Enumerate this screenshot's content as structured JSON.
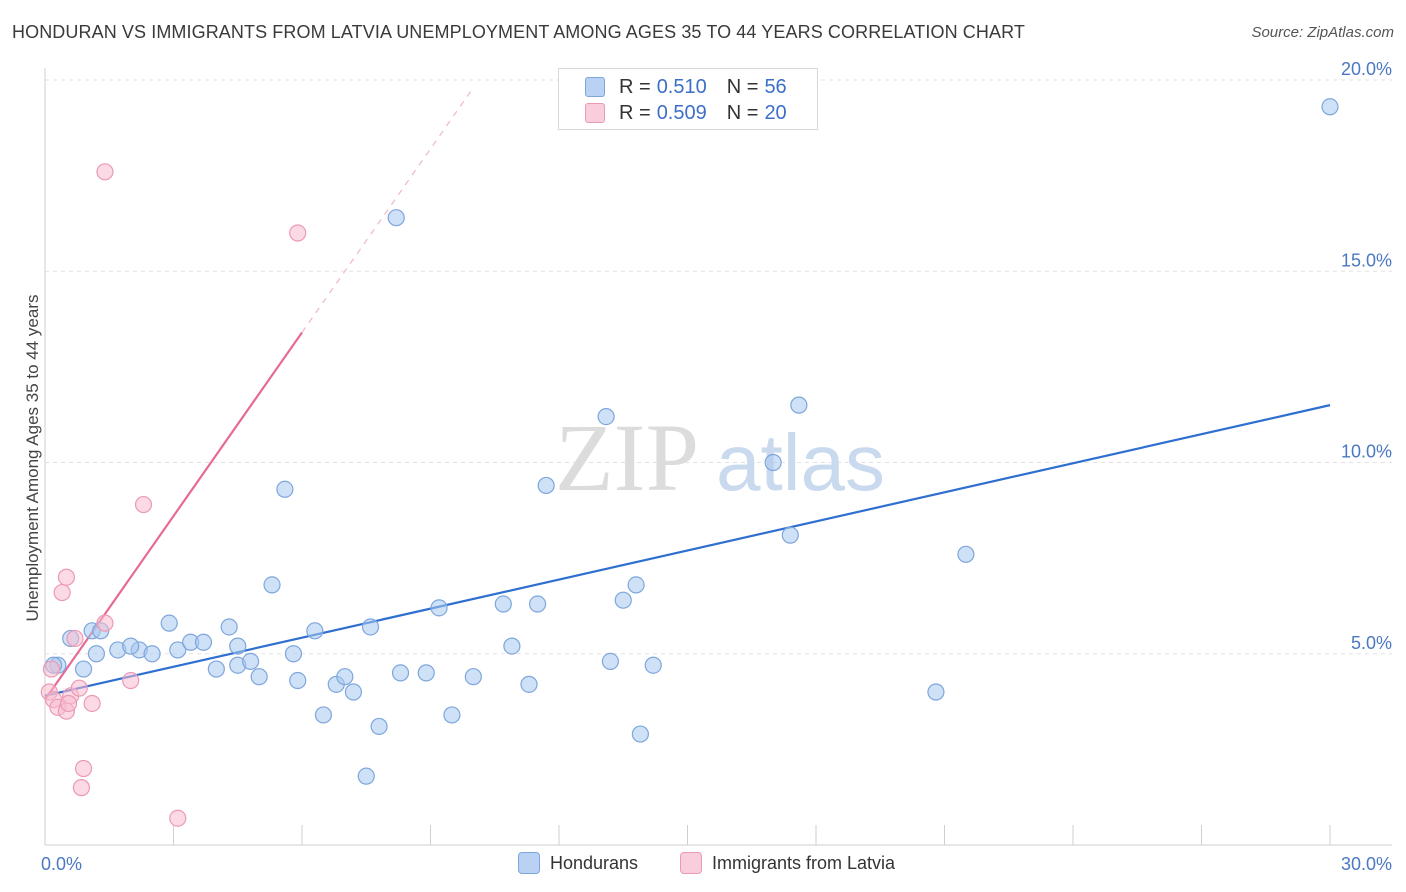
{
  "header": {
    "title": "HONDURAN VS IMMIGRANTS FROM LATVIA UNEMPLOYMENT AMONG AGES 35 TO 44 YEARS CORRELATION CHART",
    "source": "Source: ZipAtlas.com"
  },
  "legend": {
    "rows": [
      {
        "r_label": "R =",
        "r_value": "0.510",
        "n_label": "N =",
        "n_value": "56"
      },
      {
        "r_label": "R =",
        "r_value": "0.509",
        "n_label": "N =",
        "n_value": "20"
      }
    ]
  },
  "bottom_legend": {
    "series1": "Hondurans",
    "series2": "Immigrants from Latvia"
  },
  "watermark": {
    "zip": "ZIP",
    "atlas": "atlas"
  },
  "colors": {
    "blue_fill": "#a8c8f0",
    "blue_stroke": "#7ea6dc",
    "blue_line": "#2f6fd0",
    "pink_fill": "#f7bcd0",
    "pink_stroke": "#eb9ab5",
    "pink_line": "#e56b96",
    "tick_text": "#4a78c2",
    "grid": "#e2e2e2"
  },
  "chart_data": {
    "type": "scatter",
    "title": "HONDURAN VS IMMIGRANTS FROM LATVIA UNEMPLOYMENT AMONG AGES 35 TO 44 YEARS CORRELATION CHART",
    "xlabel": "",
    "ylabel": "Unemployment Among Ages 35 to 44 years",
    "xlim": [
      0,
      30
    ],
    "ylim": [
      0,
      20
    ],
    "x_tick_labels": [
      {
        "value": 0,
        "label": "0.0%"
      },
      {
        "value": 30,
        "label": "30.0%"
      }
    ],
    "y_tick_labels": [
      {
        "value": 5,
        "label": "5.0%"
      },
      {
        "value": 10,
        "label": "10.0%"
      },
      {
        "value": 15,
        "label": "15.0%"
      },
      {
        "value": 20,
        "label": "20.0%"
      }
    ],
    "series": [
      {
        "name": "Hondurans",
        "R": 0.51,
        "N": 56,
        "trend": {
          "x0": 0,
          "y0": 3.9,
          "x1": 30,
          "y1": 11.5
        },
        "points": [
          [
            0.3,
            4.7
          ],
          [
            0.6,
            5.4
          ],
          [
            1.1,
            5.6
          ],
          [
            1.7,
            5.1
          ],
          [
            2.2,
            5.1
          ],
          [
            2.0,
            5.2
          ],
          [
            2.5,
            5.0
          ],
          [
            1.2,
            5.0
          ],
          [
            2.9,
            5.8
          ],
          [
            3.1,
            5.1
          ],
          [
            3.4,
            5.3
          ],
          [
            3.7,
            5.3
          ],
          [
            4.0,
            4.6
          ],
          [
            4.3,
            5.7
          ],
          [
            4.5,
            4.7
          ],
          [
            4.5,
            5.2
          ],
          [
            4.8,
            4.8
          ],
          [
            5.0,
            4.4
          ],
          [
            5.3,
            6.8
          ],
          [
            5.6,
            9.3
          ],
          [
            5.8,
            5.0
          ],
          [
            5.9,
            4.3
          ],
          [
            6.3,
            5.6
          ],
          [
            6.5,
            3.4
          ],
          [
            6.8,
            4.2
          ],
          [
            7.0,
            4.4
          ],
          [
            7.2,
            4.0
          ],
          [
            7.5,
            1.8
          ],
          [
            7.6,
            5.7
          ],
          [
            7.8,
            3.1
          ],
          [
            8.2,
            16.4
          ],
          [
            8.3,
            4.5
          ],
          [
            8.9,
            4.5
          ],
          [
            9.2,
            6.2
          ],
          [
            9.5,
            3.4
          ],
          [
            10.0,
            4.4
          ],
          [
            10.7,
            6.3
          ],
          [
            10.9,
            5.2
          ],
          [
            11.3,
            4.2
          ],
          [
            11.5,
            6.3
          ],
          [
            11.7,
            9.4
          ],
          [
            13.1,
            11.2
          ],
          [
            13.2,
            4.8
          ],
          [
            13.5,
            6.4
          ],
          [
            13.8,
            6.8
          ],
          [
            13.9,
            2.9
          ],
          [
            14.2,
            4.7
          ],
          [
            17.0,
            10.0
          ],
          [
            17.4,
            8.1
          ],
          [
            17.6,
            11.5
          ],
          [
            20.8,
            4.0
          ],
          [
            21.5,
            7.6
          ],
          [
            30.0,
            19.3
          ],
          [
            0.2,
            4.7
          ],
          [
            1.3,
            5.6
          ],
          [
            0.9,
            4.6
          ]
        ]
      },
      {
        "name": "Immigrants from Latvia",
        "R": 0.509,
        "N": 20,
        "trend": {
          "x0": 0,
          "y0": 3.8,
          "x1": 6.0,
          "y1": 13.4
        },
        "trend_extension": {
          "x0": 6.0,
          "y0": 13.4,
          "x1": 10.0,
          "y1": 19.8
        },
        "points": [
          [
            0.1,
            4.0
          ],
          [
            0.2,
            3.8
          ],
          [
            0.3,
            3.6
          ],
          [
            0.4,
            6.6
          ],
          [
            0.5,
            7.0
          ],
          [
            0.6,
            3.9
          ],
          [
            0.7,
            5.4
          ],
          [
            0.8,
            4.1
          ],
          [
            0.9,
            2.0
          ],
          [
            0.85,
            1.5
          ],
          [
            1.1,
            3.7
          ],
          [
            1.4,
            5.8
          ],
          [
            2.0,
            4.3
          ],
          [
            2.3,
            8.9
          ],
          [
            1.4,
            17.6
          ],
          [
            3.1,
            0.7
          ],
          [
            5.9,
            16.0
          ],
          [
            0.5,
            3.5
          ],
          [
            0.55,
            3.7
          ],
          [
            0.15,
            4.6
          ]
        ]
      }
    ]
  }
}
